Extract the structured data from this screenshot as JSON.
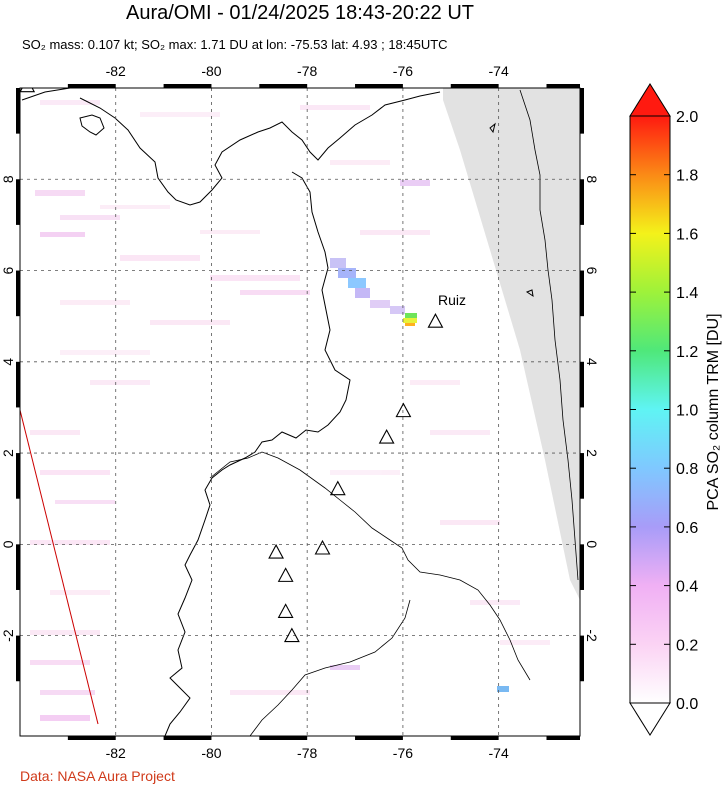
{
  "header": {
    "title": "Aura/OMI - 01/24/2025 18:43-20:22 UT",
    "subtitle": "SO₂ mass: 0.107 kt; SO₂ max: 1.71 DU at lon: -75.53 lat: 4.93 ; 18:45UTC"
  },
  "map": {
    "lon_range": [
      -84,
      -72.3
    ],
    "lat_range": [
      -4.2,
      10
    ],
    "lon_ticks": [
      "-82",
      "-80",
      "-78",
      "-76",
      "-74"
    ],
    "lat_ticks": [
      "8",
      "6",
      "4",
      "2",
      "0",
      "-2"
    ],
    "annotation": "Ruiz",
    "volcanoes": [
      {
        "lon": -75.32,
        "lat": 4.89
      },
      {
        "lon": -75.99,
        "lat": 2.93
      },
      {
        "lon": -76.34,
        "lat": 2.35
      },
      {
        "lon": -77.36,
        "lat": 1.22
      },
      {
        "lon": -77.68,
        "lat": -0.08
      },
      {
        "lon": -78.65,
        "lat": -0.17
      },
      {
        "lon": -78.45,
        "lat": -0.68
      },
      {
        "lon": -78.45,
        "lat": -1.47
      },
      {
        "lon": -78.32,
        "lat": -2.0
      },
      {
        "lon": -83.85,
        "lat": 10.05
      }
    ]
  },
  "colorbar": {
    "title": "PCA SO₂ column TRM [DU]",
    "labels": [
      "2.0",
      "1.8",
      "1.6",
      "1.4",
      "1.2",
      "1.0",
      "0.8",
      "0.6",
      "0.4",
      "0.2",
      "0.0"
    ]
  },
  "footer": {
    "credit": "Data: NASA Aura Project"
  },
  "colors": {
    "credit": "#d03a1a",
    "no_data": "#e2e2e2",
    "swath_edge": "#cc0000"
  }
}
